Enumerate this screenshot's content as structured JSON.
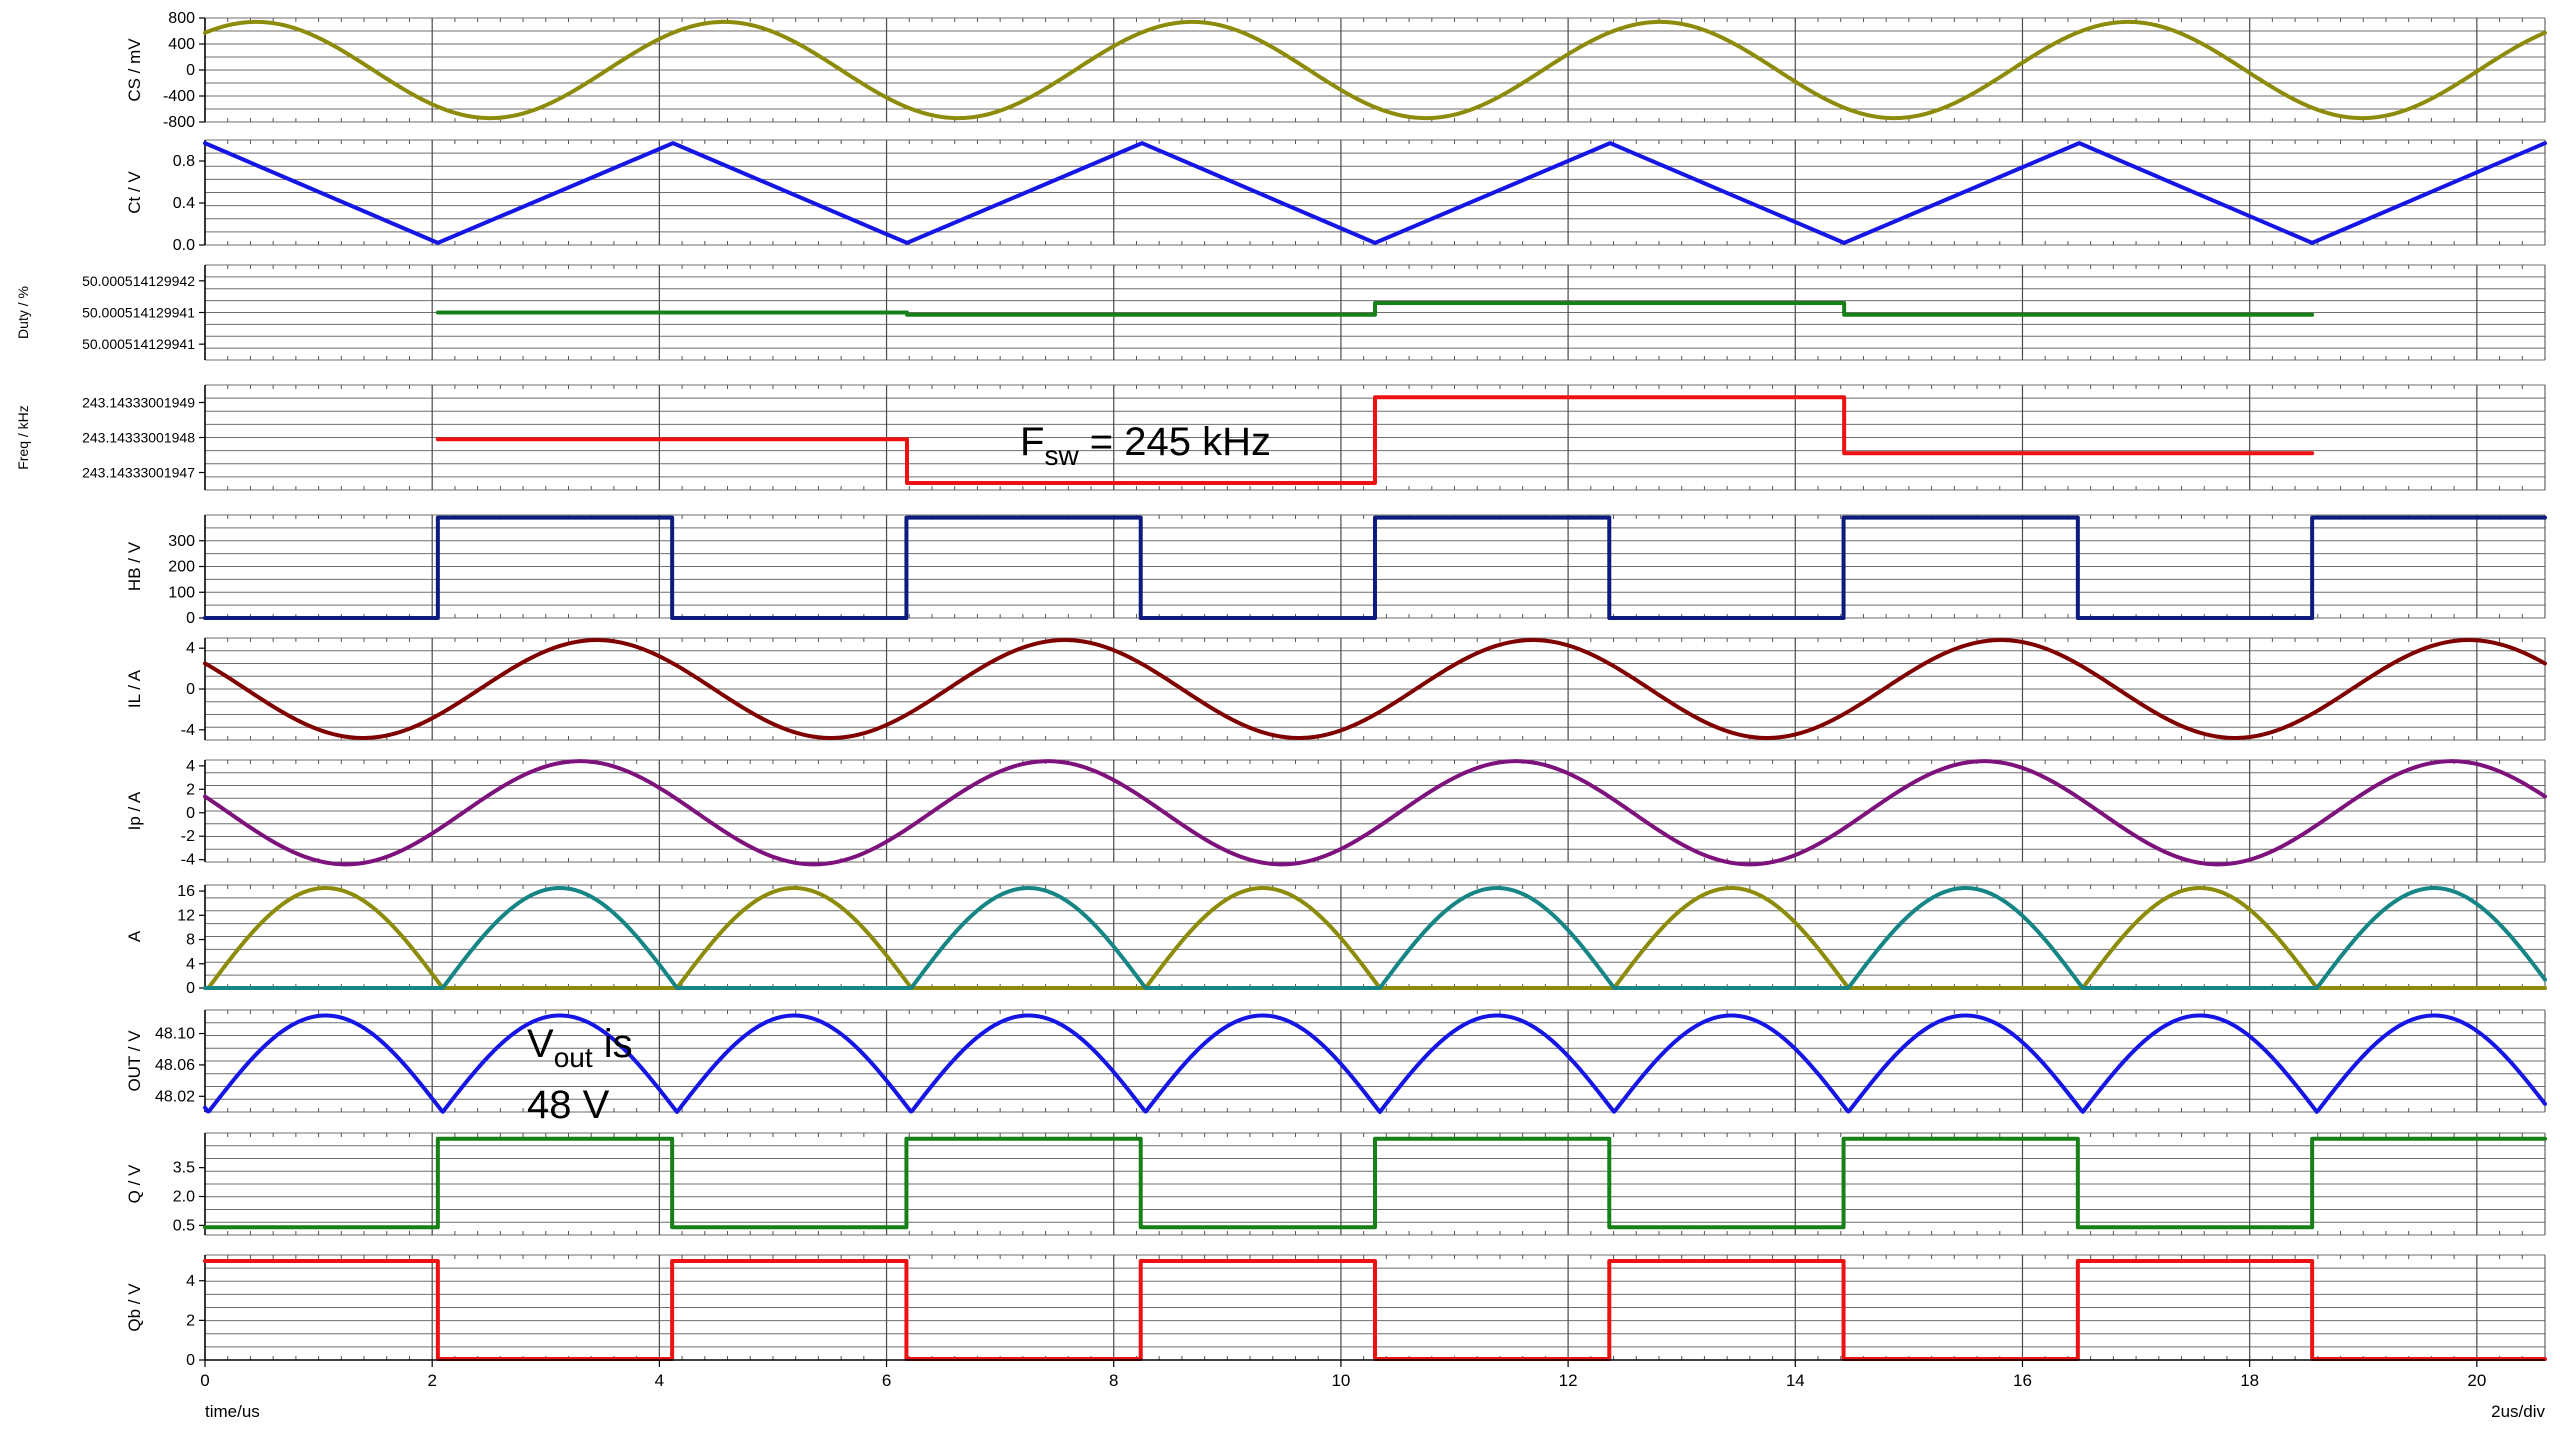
{
  "chart_data": {
    "type": "line",
    "title": "",
    "xlabel": "time/us",
    "time_scale_label": "2us/div",
    "xlim": [
      0,
      20.6
    ],
    "x_ticks": [
      0,
      2,
      4,
      6,
      8,
      10,
      12,
      14,
      16,
      18,
      20
    ],
    "grid": true,
    "colors": {
      "olive": "#8c8c0a",
      "blue": "#1515e6",
      "green": "#188018",
      "red": "#ee1111",
      "navy": "#0d1a80",
      "maroon": "#800000",
      "purple": "#7d127d",
      "teal": "#158585"
    },
    "panels": [
      {
        "ylabel": "CS / mV",
        "ylim": [
          -800,
          800
        ],
        "y_ticks": [
          -800,
          -400,
          0,
          400,
          800
        ],
        "tick_labels": [
          "-800",
          "-400",
          "0",
          "400",
          "800"
        ],
        "series": [
          {
            "color": "olive",
            "kind": "sine",
            "amplitude": 740,
            "offset": 0,
            "period_us": 4.12,
            "peak_at_us": 0.45
          }
        ]
      },
      {
        "ylabel": "Ct / V",
        "ylim": [
          0,
          1.0
        ],
        "y_ticks": [
          0,
          0.4,
          0.8
        ],
        "tick_labels": [
          "0.0",
          "0.4",
          "0.8"
        ],
        "series": [
          {
            "color": "blue",
            "kind": "points",
            "points": [
              [
                0,
                0.97
              ],
              [
                2.05,
                0.02
              ],
              [
                4.12,
                0.97
              ],
              [
                6.18,
                0.02
              ],
              [
                8.25,
                0.97
              ],
              [
                10.3,
                0.02
              ],
              [
                12.37,
                0.97
              ],
              [
                14.43,
                0.02
              ],
              [
                16.5,
                0.97
              ],
              [
                18.55,
                0.02
              ],
              [
                20.6,
                0.97
              ]
            ]
          }
        ]
      },
      {
        "ylabel": "Duty / %",
        "ylim": [
          0,
          3
        ],
        "y_ticks": [
          0.5,
          1.5,
          2.5
        ],
        "tick_labels": [
          "50.000514129941",
          "50.000514129941",
          "50.000514129942"
        ],
        "series": [
          {
            "color": "green",
            "kind": "points",
            "points": [
              [
                2.05,
                1.5
              ],
              [
                6.18,
                1.5
              ],
              [
                6.18,
                1.43
              ],
              [
                10.3,
                1.43
              ],
              [
                10.3,
                1.8
              ],
              [
                14.43,
                1.8
              ],
              [
                14.43,
                1.43
              ],
              [
                18.55,
                1.43
              ]
            ]
          }
        ]
      },
      {
        "ylabel": "Freq / kHz",
        "ylim": [
          0,
          3
        ],
        "y_ticks": [
          0.5,
          1.5,
          2.5
        ],
        "tick_labels": [
          "243.14333001947",
          "243.14333001948",
          "243.14333001949"
        ],
        "series": [
          {
            "color": "red",
            "kind": "points",
            "points": [
              [
                2.05,
                1.45
              ],
              [
                6.18,
                1.45
              ],
              [
                6.18,
                0.2
              ],
              [
                10.3,
                0.2
              ],
              [
                10.3,
                2.65
              ],
              [
                14.43,
                2.65
              ],
              [
                14.43,
                1.05
              ],
              [
                18.55,
                1.05
              ]
            ]
          }
        ]
      },
      {
        "ylabel": "HB / V",
        "ylim": [
          0,
          400
        ],
        "y_ticks": [
          0,
          100,
          200,
          300
        ],
        "tick_labels": [
          "0",
          "100",
          "200",
          "300"
        ],
        "series": [
          {
            "color": "navy",
            "kind": "square",
            "low": 0,
            "high": 390,
            "starts_high": false,
            "first_edge_us": 2.05,
            "half_period_us": 2.0625
          }
        ]
      },
      {
        "ylabel": "IL / A",
        "ylim": [
          -5,
          5
        ],
        "y_ticks": [
          -4,
          0,
          4
        ],
        "tick_labels": [
          "-4",
          "0",
          "4"
        ],
        "series": [
          {
            "color": "maroon",
            "kind": "sine",
            "amplitude": 4.8,
            "offset": 0,
            "period_us": 4.12,
            "peak_at_us": 3.45
          }
        ]
      },
      {
        "ylabel": "Ip / A",
        "ylim": [
          -4.2,
          4.5
        ],
        "y_ticks": [
          -4,
          -2,
          0,
          2,
          4
        ],
        "tick_labels": [
          "-4",
          "-2",
          "0",
          "2",
          "4"
        ],
        "series": [
          {
            "color": "purple",
            "kind": "sine",
            "amplitude": 4.4,
            "offset": 0,
            "period_us": 4.12,
            "peak_at_us": 3.3
          }
        ]
      },
      {
        "ylabel": "A",
        "ylim": [
          0,
          17
        ],
        "y_ticks": [
          0,
          4,
          8,
          12,
          16
        ],
        "tick_labels": [
          "0",
          "4",
          "8",
          "12",
          "16"
        ],
        "series": [
          {
            "color": "olive",
            "kind": "half_sine",
            "amplitude": 16.5,
            "first_start_us": 0.03,
            "half_period_us": 2.0625,
            "active_phase": 0
          },
          {
            "color": "teal",
            "kind": "half_sine",
            "amplitude": 16.5,
            "first_start_us": 0.03,
            "half_period_us": 2.0625,
            "active_phase": 1
          }
        ]
      },
      {
        "ylabel": "OUT / V",
        "ylim": [
          48.0,
          48.13
        ],
        "y_ticks": [
          48.02,
          48.06,
          48.1
        ],
        "tick_labels": [
          "48.02",
          "48.06",
          "48.10"
        ],
        "series": [
          {
            "color": "blue",
            "kind": "abs_sine",
            "min": 48.0,
            "max": 48.123,
            "first_start_us": 0.03,
            "half_period_us": 2.0625
          }
        ]
      },
      {
        "ylabel": "Q / V",
        "ylim": [
          0,
          5.3
        ],
        "y_ticks": [
          0.5,
          2.0,
          3.5
        ],
        "tick_labels": [
          "0.5",
          "2.0",
          "3.5"
        ],
        "series": [
          {
            "color": "green",
            "kind": "square",
            "low": 0.4,
            "high": 5.0,
            "starts_high": false,
            "first_edge_us": 2.05,
            "half_period_us": 2.0625
          }
        ]
      },
      {
        "ylabel": "Qb / V",
        "ylim": [
          0,
          5.3
        ],
        "y_ticks": [
          0,
          2,
          4
        ],
        "tick_labels": [
          "0",
          "2",
          "4"
        ],
        "series": [
          {
            "color": "red",
            "kind": "square",
            "low": 0.05,
            "high": 5.0,
            "starts_high": true,
            "first_edge_us": 2.05,
            "half_period_us": 2.0625
          }
        ]
      }
    ],
    "annotations": [
      {
        "panel": 3,
        "text": "F",
        "subscript": "sw",
        "suffix": " = 245 kHz"
      },
      {
        "panel": 8,
        "line1_text": "V",
        "line1_subscript": "out",
        "line1_suffix": " is",
        "line2_text": "48 V"
      }
    ]
  }
}
